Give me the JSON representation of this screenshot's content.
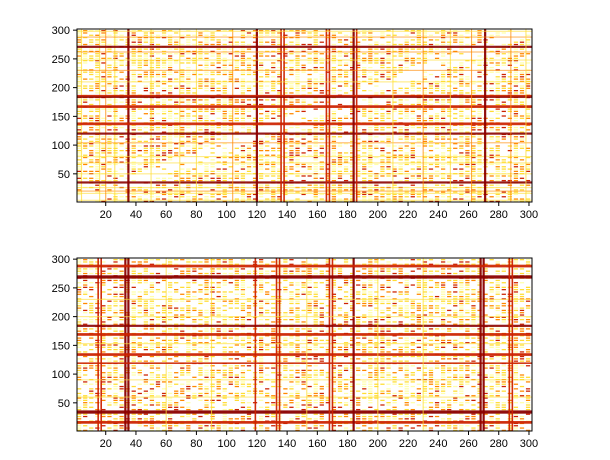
{
  "figure": {
    "background": "#ffffff",
    "colormap": "hot",
    "colors": {
      "dark": "#8b0000",
      "red": "#cc2200",
      "orange": "#ff8800",
      "yellow": "#ffdd33",
      "pale": "#ffffaa"
    }
  },
  "chart_data": [
    {
      "type": "heatmap",
      "title": "",
      "xlabel": "",
      "ylabel": "",
      "xlim": [
        1,
        302
      ],
      "ylim": [
        1,
        302
      ],
      "xticks": [
        20,
        40,
        60,
        80,
        100,
        120,
        140,
        160,
        180,
        200,
        220,
        240,
        260,
        280,
        300
      ],
      "yticks": [
        50,
        100,
        150,
        200,
        250,
        300
      ],
      "grid": false,
      "legend": "none",
      "density": 0.55,
      "diagonal_sparse": true,
      "bands": [
        {
          "index": 4,
          "level": 1
        },
        {
          "index": 16,
          "level": 1
        },
        {
          "index": 20,
          "level": 2
        },
        {
          "index": 26,
          "level": 1
        },
        {
          "index": 35,
          "level": 4
        },
        {
          "index": 50,
          "level": 1
        },
        {
          "index": 69,
          "level": 1
        },
        {
          "index": 80,
          "level": 1
        },
        {
          "index": 104,
          "level": 2
        },
        {
          "index": 120,
          "level": 4
        },
        {
          "index": 136,
          "level": 3
        },
        {
          "index": 138,
          "level": 3
        },
        {
          "index": 166,
          "level": 3
        },
        {
          "index": 168,
          "level": 3
        },
        {
          "index": 184,
          "level": 4
        },
        {
          "index": 186,
          "level": 3
        },
        {
          "index": 210,
          "level": 1
        },
        {
          "index": 230,
          "level": 2
        },
        {
          "index": 248,
          "level": 1
        },
        {
          "index": 262,
          "level": 2
        },
        {
          "index": 271,
          "level": 4
        },
        {
          "index": 288,
          "level": 2
        },
        {
          "index": 298,
          "level": 1
        }
      ]
    },
    {
      "type": "heatmap",
      "title": "",
      "xlabel": "",
      "ylabel": "",
      "xlim": [
        1,
        302
      ],
      "ylim": [
        1,
        302
      ],
      "xticks": [
        20,
        40,
        60,
        80,
        100,
        120,
        140,
        160,
        180,
        200,
        220,
        240,
        260,
        280,
        300
      ],
      "yticks": [
        50,
        100,
        150,
        200,
        250,
        300
      ],
      "grid": false,
      "legend": "none",
      "density": 0.5,
      "diagonal_sparse": false,
      "bands": [
        {
          "index": 15,
          "level": 3
        },
        {
          "index": 17,
          "level": 3
        },
        {
          "index": 33,
          "level": 4
        },
        {
          "index": 35,
          "level": 4
        },
        {
          "index": 60,
          "level": 1
        },
        {
          "index": 90,
          "level": 1
        },
        {
          "index": 119,
          "level": 3
        },
        {
          "index": 133,
          "level": 3
        },
        {
          "index": 135,
          "level": 3
        },
        {
          "index": 153,
          "level": 1
        },
        {
          "index": 168,
          "level": 3
        },
        {
          "index": 170,
          "level": 3
        },
        {
          "index": 184,
          "level": 4
        },
        {
          "index": 200,
          "level": 1
        },
        {
          "index": 230,
          "level": 1
        },
        {
          "index": 268,
          "level": 4
        },
        {
          "index": 270,
          "level": 4
        },
        {
          "index": 287,
          "level": 3
        },
        {
          "index": 289,
          "level": 3
        }
      ]
    }
  ]
}
